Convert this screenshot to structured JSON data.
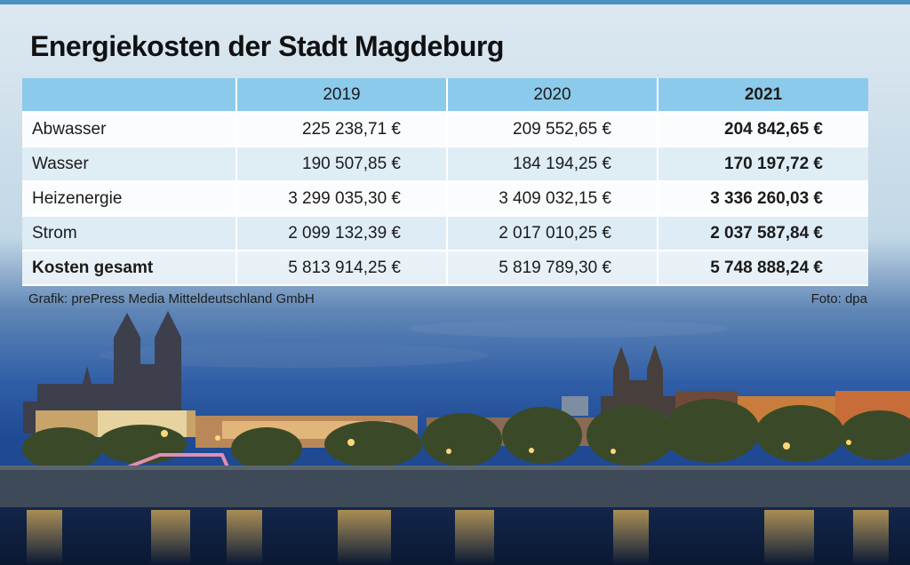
{
  "title": "Energiekosten der Stadt Magdeburg",
  "source": "Grafik: prePress Media Mitteldeutschland GmbH",
  "photo_credit": "Foto: dpa",
  "colors": {
    "header": "#8ccaeb",
    "accent_bar": "#4a92c4",
    "title": "#111111"
  },
  "chart_data": {
    "type": "table",
    "title": "Energiekosten der Stadt Magdeburg",
    "columns": [
      "",
      "2019",
      "2020",
      "2021"
    ],
    "rows": [
      [
        "Abwasser",
        "225 238,71 €",
        "209 552,65 €",
        "204 842,65 €"
      ],
      [
        "Wasser",
        "190 507,85 €",
        "184 194,25 €",
        "170 197,72 €"
      ],
      [
        "Heizenergie",
        "3 299 035,30 €",
        "3 409 032,15 €",
        "3 336 260,03 €"
      ],
      [
        "Strom",
        "2 099 132,39 €",
        "2 017 010,25 €",
        "2 037 587,84 €"
      ],
      [
        "Kosten gesamt",
        "5 813 914,25 €",
        "5 819 789,30 €",
        "5 748 888,24 €"
      ]
    ],
    "emphasis": {
      "bold_column": "2021",
      "bold_row": "Kosten gesamt"
    }
  }
}
